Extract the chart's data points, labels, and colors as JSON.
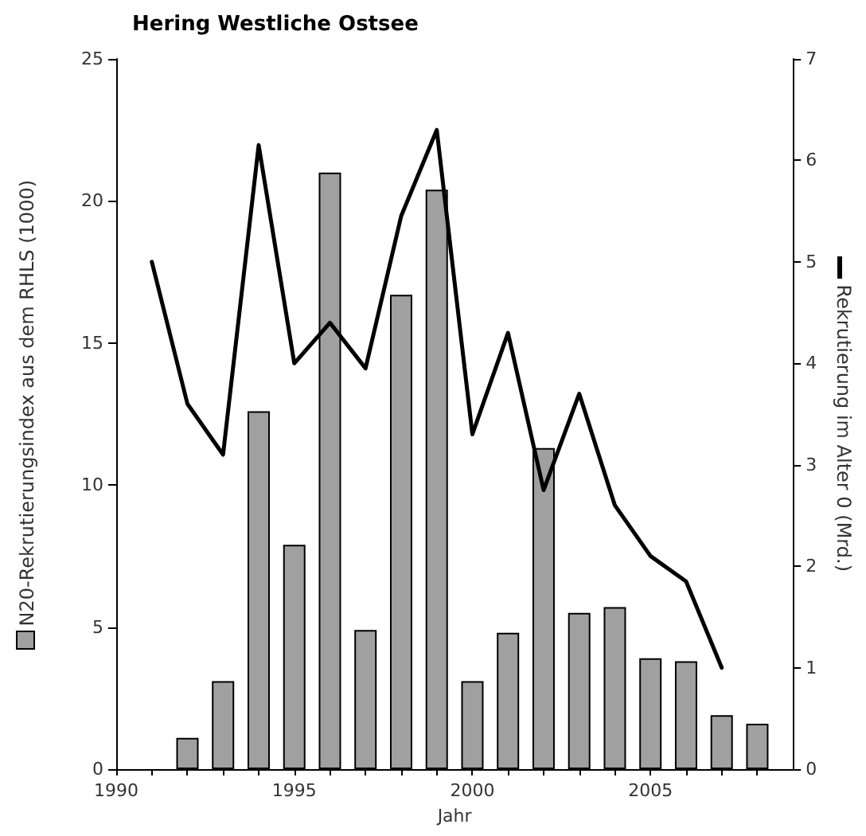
{
  "chart_data": {
    "type": "bar",
    "title": "Hering Westliche Ostsee",
    "xlabel": "Jahr",
    "ylabel": "N20-Rekrutierungsindex aus dem RHLS (1000)",
    "y2label": "Rekrutierung im Alter 0 (Mrd.)",
    "xlim": [
      1990,
      2009
    ],
    "xticks": [
      1990,
      {
        "value": 1991,
        "label": null
      },
      {
        "value": 1992,
        "label": null
      },
      {
        "value": 1993,
        "label": null
      },
      {
        "value": 1994,
        "label": null
      },
      1995,
      {
        "value": 1996,
        "label": null
      },
      {
        "value": 1997,
        "label": null
      },
      {
        "value": 1998,
        "label": null
      },
      {
        "value": 1999,
        "label": null
      },
      2000,
      {
        "value": 2001,
        "label": null
      },
      {
        "value": 2002,
        "label": null
      },
      {
        "value": 2003,
        "label": null
      },
      {
        "value": 2004,
        "label": null
      },
      2005,
      {
        "value": 2006,
        "label": null
      },
      {
        "value": 2007,
        "label": null
      },
      {
        "value": 2008,
        "label": null
      }
    ],
    "ylim": [
      0,
      25
    ],
    "yticks": [
      0,
      5,
      10,
      15,
      20,
      25
    ],
    "y2lim": [
      0,
      7
    ],
    "y2ticks": [
      0,
      1,
      2,
      3,
      4,
      5,
      6,
      7
    ],
    "grid": false,
    "series": [
      {
        "color": "#a0a0a0",
        "x": [
          1992,
          1993,
          1994,
          1995,
          1996,
          1997,
          1998,
          1999,
          2000,
          2001,
          2002,
          2003,
          2004,
          2005,
          2006,
          2007,
          2008
        ],
        "values": [
          1.1,
          3.1,
          12.6,
          7.9,
          21.0,
          4.9,
          16.7,
          20.4,
          3.1,
          4.8,
          11.3,
          5.5,
          5.7,
          3.9,
          3.8,
          1.9,
          1.6
        ]
      },
      {
        "type": "line",
        "axis": "y2",
        "color": "#000000",
        "marker": "none",
        "line_style": "solid",
        "x": [
          1991,
          1992,
          1993,
          1994,
          1995,
          1996,
          1997,
          1998,
          1999,
          2000,
          2001,
          2002,
          2003,
          2004,
          2005,
          2006,
          2007
        ],
        "values": [
          5.0,
          3.6,
          3.1,
          6.15,
          4.0,
          4.4,
          3.95,
          5.45,
          6.3,
          3.3,
          4.3,
          2.75,
          3.7,
          2.6,
          2.1,
          1.85,
          1.0
        ]
      }
    ]
  }
}
